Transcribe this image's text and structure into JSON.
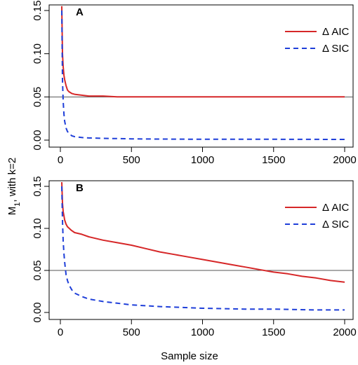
{
  "figure": {
    "ylabel_main": "M",
    "ylabel_sub": "1",
    "ylabel_tail": ", with k=2",
    "xlabel": "Sample size"
  },
  "chart_data": [
    {
      "type": "line",
      "panel": "A",
      "xlim": [
        0,
        2000
      ],
      "ylim": [
        0,
        0.15
      ],
      "xticks": [
        "0",
        "500",
        "1000",
        "1500",
        "2000"
      ],
      "yticks": [
        "0.00",
        "0.05",
        "0.10",
        "0.15"
      ],
      "reference_line": 0.05,
      "legend": {
        "placement": "top-right"
      },
      "series": [
        {
          "name": "Δ AIC",
          "color": "#d62728",
          "dash": "solid",
          "x": [
            10,
            15,
            20,
            25,
            30,
            40,
            50,
            60,
            80,
            100,
            150,
            200,
            300,
            400,
            500,
            600,
            700,
            800,
            900,
            1000,
            1100,
            1200,
            1300,
            1400,
            1500,
            1600,
            1700,
            1800,
            1900,
            2000
          ],
          "y": [
            0.155,
            0.1,
            0.085,
            0.075,
            0.07,
            0.063,
            0.058,
            0.056,
            0.054,
            0.053,
            0.052,
            0.051,
            0.051,
            0.05,
            0.05,
            0.05,
            0.05,
            0.05,
            0.05,
            0.05,
            0.05,
            0.05,
            0.05,
            0.05,
            0.05,
            0.05,
            0.05,
            0.05,
            0.05,
            0.05
          ]
        },
        {
          "name": "Δ SIC",
          "color": "#1f3fd9",
          "dash": "dashed",
          "x": [
            10,
            15,
            20,
            25,
            30,
            40,
            50,
            60,
            80,
            100,
            150,
            200,
            300,
            400,
            500,
            700,
            1000,
            1500,
            2000
          ],
          "y": [
            0.15,
            0.07,
            0.045,
            0.03,
            0.022,
            0.014,
            0.01,
            0.008,
            0.005,
            0.004,
            0.003,
            0.0025,
            0.002,
            0.0018,
            0.0015,
            0.0012,
            0.001,
            0.001,
            0.0008
          ]
        }
      ]
    },
    {
      "type": "line",
      "panel": "B",
      "xlim": [
        0,
        2000
      ],
      "ylim": [
        0,
        0.15
      ],
      "xticks": [
        "0",
        "500",
        "1000",
        "1500",
        "2000"
      ],
      "yticks": [
        "0.00",
        "0.05",
        "0.10",
        "0.15"
      ],
      "reference_line": 0.05,
      "legend": {
        "placement": "top-right"
      },
      "series": [
        {
          "name": "Δ AIC",
          "color": "#d62728",
          "dash": "solid",
          "x": [
            10,
            15,
            20,
            25,
            30,
            40,
            50,
            75,
            100,
            150,
            200,
            300,
            400,
            500,
            600,
            700,
            800,
            900,
            1000,
            1100,
            1200,
            1300,
            1400,
            1500,
            1600,
            1700,
            1800,
            1900,
            2000
          ],
          "y": [
            0.155,
            0.13,
            0.12,
            0.115,
            0.11,
            0.105,
            0.102,
            0.098,
            0.095,
            0.093,
            0.09,
            0.086,
            0.083,
            0.08,
            0.076,
            0.072,
            0.069,
            0.066,
            0.063,
            0.06,
            0.057,
            0.054,
            0.051,
            0.048,
            0.046,
            0.043,
            0.041,
            0.038,
            0.036
          ]
        },
        {
          "name": "Δ SIC",
          "color": "#1f3fd9",
          "dash": "dashed",
          "x": [
            10,
            15,
            20,
            25,
            30,
            40,
            50,
            60,
            80,
            100,
            150,
            200,
            300,
            400,
            500,
            700,
            1000,
            1300,
            1500,
            1800,
            2000
          ],
          "y": [
            0.15,
            0.11,
            0.085,
            0.07,
            0.06,
            0.045,
            0.038,
            0.033,
            0.027,
            0.023,
            0.019,
            0.016,
            0.013,
            0.011,
            0.009,
            0.007,
            0.005,
            0.004,
            0.004,
            0.003,
            0.003
          ]
        }
      ]
    }
  ]
}
